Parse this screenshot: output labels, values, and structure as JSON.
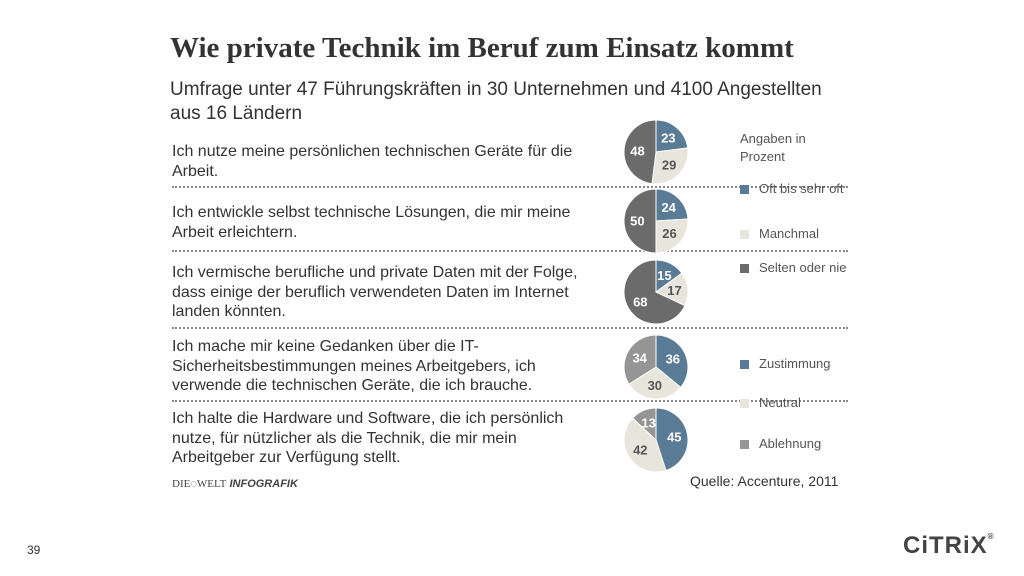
{
  "title": "Wie private Technik im Beruf zum Einsatz kommt",
  "subtitle": "Umfrage unter 47 Führungskräften in 30 Unternehmen und 4100 Angestellten aus 16 Ländern",
  "colors": {
    "blue": "#5a7b96",
    "light": "#e7e5dc",
    "dark": "#6b6b6b",
    "mid": "#959595",
    "text": "#333333"
  },
  "legend": {
    "heading": "Angaben in Prozent",
    "group1": [
      {
        "label": "Oft bis sehr oft",
        "color": "#5a7b96"
      },
      {
        "label": "Manchmal",
        "color": "#e7e5dc"
      },
      {
        "label": "Selten oder nie",
        "color": "#6b6b6b"
      }
    ],
    "group2": [
      {
        "label": "Zustimmung",
        "color": "#5a7b96"
      },
      {
        "label": "Neutral",
        "color": "#e7e5dc"
      },
      {
        "label": "Ablehnung",
        "color": "#959595"
      }
    ]
  },
  "chart_data": {
    "type": "pie",
    "title": "Wie private Technik im Beruf zum Einsatz kommt",
    "unit": "Prozent",
    "pies": [
      {
        "question": "Ich nutze meine persönlichen technischen Geräte für die Arbeit.",
        "slices": [
          {
            "name": "Oft bis sehr oft",
            "value": 23
          },
          {
            "name": "Manchmal",
            "value": 29
          },
          {
            "name": "Selten oder nie",
            "value": 48
          }
        ]
      },
      {
        "question": "Ich entwickle selbst technische Lösungen, die mir meine Arbeit erleichtern.",
        "slices": [
          {
            "name": "Oft bis sehr oft",
            "value": 24
          },
          {
            "name": "Manchmal",
            "value": 26
          },
          {
            "name": "Selten oder nie",
            "value": 50
          }
        ]
      },
      {
        "question": "Ich vermische berufliche und private Daten mit der Folge, dass einige der beruflich verwendeten Daten im Internet landen könnten.",
        "slices": [
          {
            "name": "Oft bis sehr oft",
            "value": 15
          },
          {
            "name": "Manchmal",
            "value": 17
          },
          {
            "name": "Selten oder nie",
            "value": 68
          }
        ]
      },
      {
        "question": "Ich mache mir keine Gedanken über die IT-Sicherheitsbestimmungen meines Arbeitgebers, ich verwende die technischen Geräte, die ich brauche.",
        "slices": [
          {
            "name": "Zustimmung",
            "value": 36
          },
          {
            "name": "Neutral",
            "value": 30
          },
          {
            "name": "Ablehnung",
            "value": 34
          }
        ]
      },
      {
        "question": "Ich halte die Hardware und Software, die ich persönlich nutze, für nützlicher als die Technik, die mir mein Arbeitgeber zur Verfügung stellt.",
        "slices": [
          {
            "name": "Zustimmung",
            "value": 45
          },
          {
            "name": "Neutral",
            "value": 42
          },
          {
            "name": "Ablehnung",
            "value": 13
          }
        ]
      }
    ]
  },
  "footer": {
    "brand_left": "DIE",
    "brand_mid": "WELT",
    "brand_right": "INFOGRAFIK",
    "source": "Quelle: Accenture, 2011"
  },
  "slide": {
    "page_number": "39",
    "company": "CiTRiX",
    "trademark": "®"
  }
}
